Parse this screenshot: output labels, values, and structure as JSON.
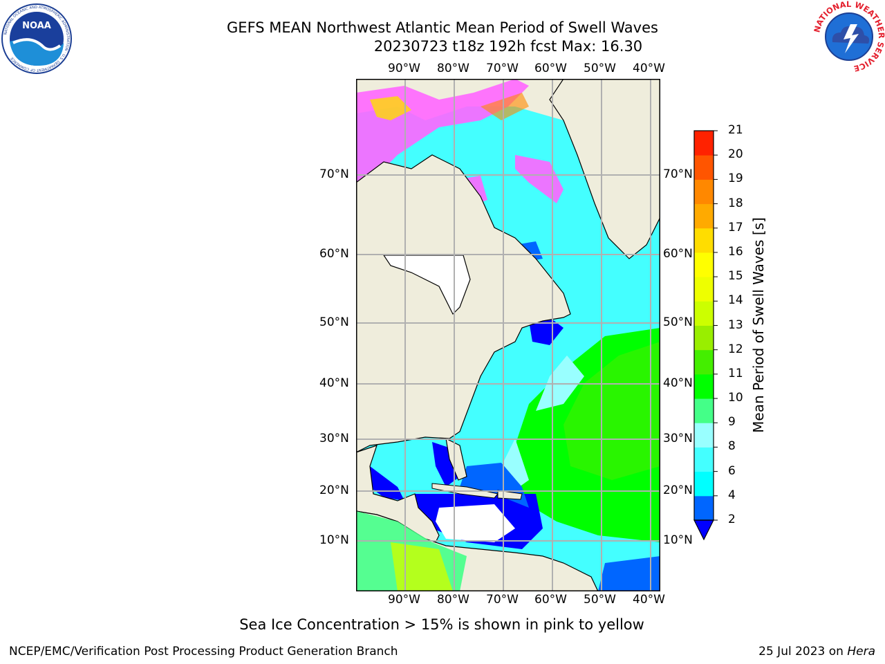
{
  "header": {
    "title_line1": "GEFS MEAN Northwest Atlantic Mean Period of Swell Waves",
    "title_line2": "20230723 t18z 192h fcst   Max: 16.30"
  },
  "logos": {
    "left": {
      "name": "NOAA",
      "ring_text": "NATIONAL OCEANIC AND ATMOSPHERIC ADMINISTRATION · U.S. DEPARTMENT OF COMMERCE"
    },
    "right": {
      "name": "NATIONAL WEATHER SERVICE"
    }
  },
  "map": {
    "lon_labels": [
      "90°W",
      "80°W",
      "70°W",
      "60°W",
      "50°W",
      "40°W"
    ],
    "lat_labels": [
      "70°N",
      "60°N",
      "50°N",
      "40°N",
      "30°N",
      "20°N",
      "10°N"
    ],
    "land_color": "#efeddc",
    "grid_color": "#b0b0b0"
  },
  "colorbar": {
    "label": "Mean Period of Swell Waves [s]",
    "ticks": [
      "2",
      "4",
      "6",
      "8",
      "9",
      "10",
      "11",
      "12",
      "13",
      "14",
      "15",
      "16",
      "17",
      "18",
      "19",
      "20",
      "21"
    ],
    "colors": [
      "#0000ff",
      "#0066ff",
      "#00ffff",
      "#44ffff",
      "#99ffff",
      "#44ff88",
      "#00ff00",
      "#44ee00",
      "#99ee00",
      "#ccff00",
      "#eeff00",
      "#ffff00",
      "#ffdd00",
      "#ffaa00",
      "#ff8800",
      "#ff5500",
      "#ff2200",
      "#ff0000"
    ]
  },
  "footer": {
    "note": "Sea Ice Concentration > 15% is shown in pink to yellow",
    "credit": "NCEP/EMC/Verification Post Processing Product Generation Branch",
    "date_prefix": "25 Jul 2023 on ",
    "machine": "Hera"
  }
}
